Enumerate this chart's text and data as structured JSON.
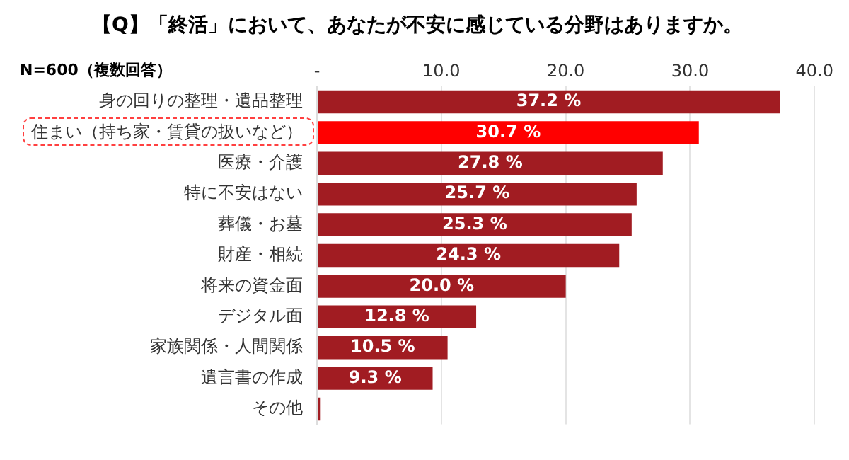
{
  "chart_data": {
    "type": "bar",
    "orientation": "horizontal",
    "title": "【Q】「終活」において、あなたが不安に感じている分野はありますか。",
    "annotations": [
      "N=600（複数回答）"
    ],
    "categories": [
      "身の回りの整理・遺品整理",
      "住まい（持ち家・賃貸の扱いなど）",
      "医療・介護",
      "特に不安はない",
      "葬儀・お墓",
      "財産・相続",
      "将来の資金面",
      "デジタル面",
      "家族関係・人間関係",
      "遺言書の作成",
      "その他"
    ],
    "values": [
      37.2,
      30.7,
      27.8,
      25.7,
      25.3,
      24.3,
      20.0,
      12.8,
      10.5,
      9.3,
      0.3
    ],
    "value_labels": [
      "37.2 %",
      "30.7 %",
      "27.8 %",
      "25.7 %",
      "25.3 %",
      "24.3 %",
      "20.0 %",
      "12.8 %",
      "10.5 %",
      "9.3 %",
      null
    ],
    "colors": [
      "#a11c22",
      "#ff0000",
      "#a11c22",
      "#a11c22",
      "#a11c22",
      "#a11c22",
      "#a11c22",
      "#a11c22",
      "#a11c22",
      "#a11c22",
      "#a11c22"
    ],
    "xlim": [
      0,
      40
    ],
    "xticks": [
      {
        "value": 0,
        "label": "-"
      },
      {
        "value": 10,
        "label": "10.0"
      },
      {
        "value": 20,
        "label": "20.0"
      },
      {
        "value": 30,
        "label": "30.0"
      },
      {
        "value": 40,
        "label": "40.0"
      }
    ],
    "grid": "x",
    "legend": false
  }
}
